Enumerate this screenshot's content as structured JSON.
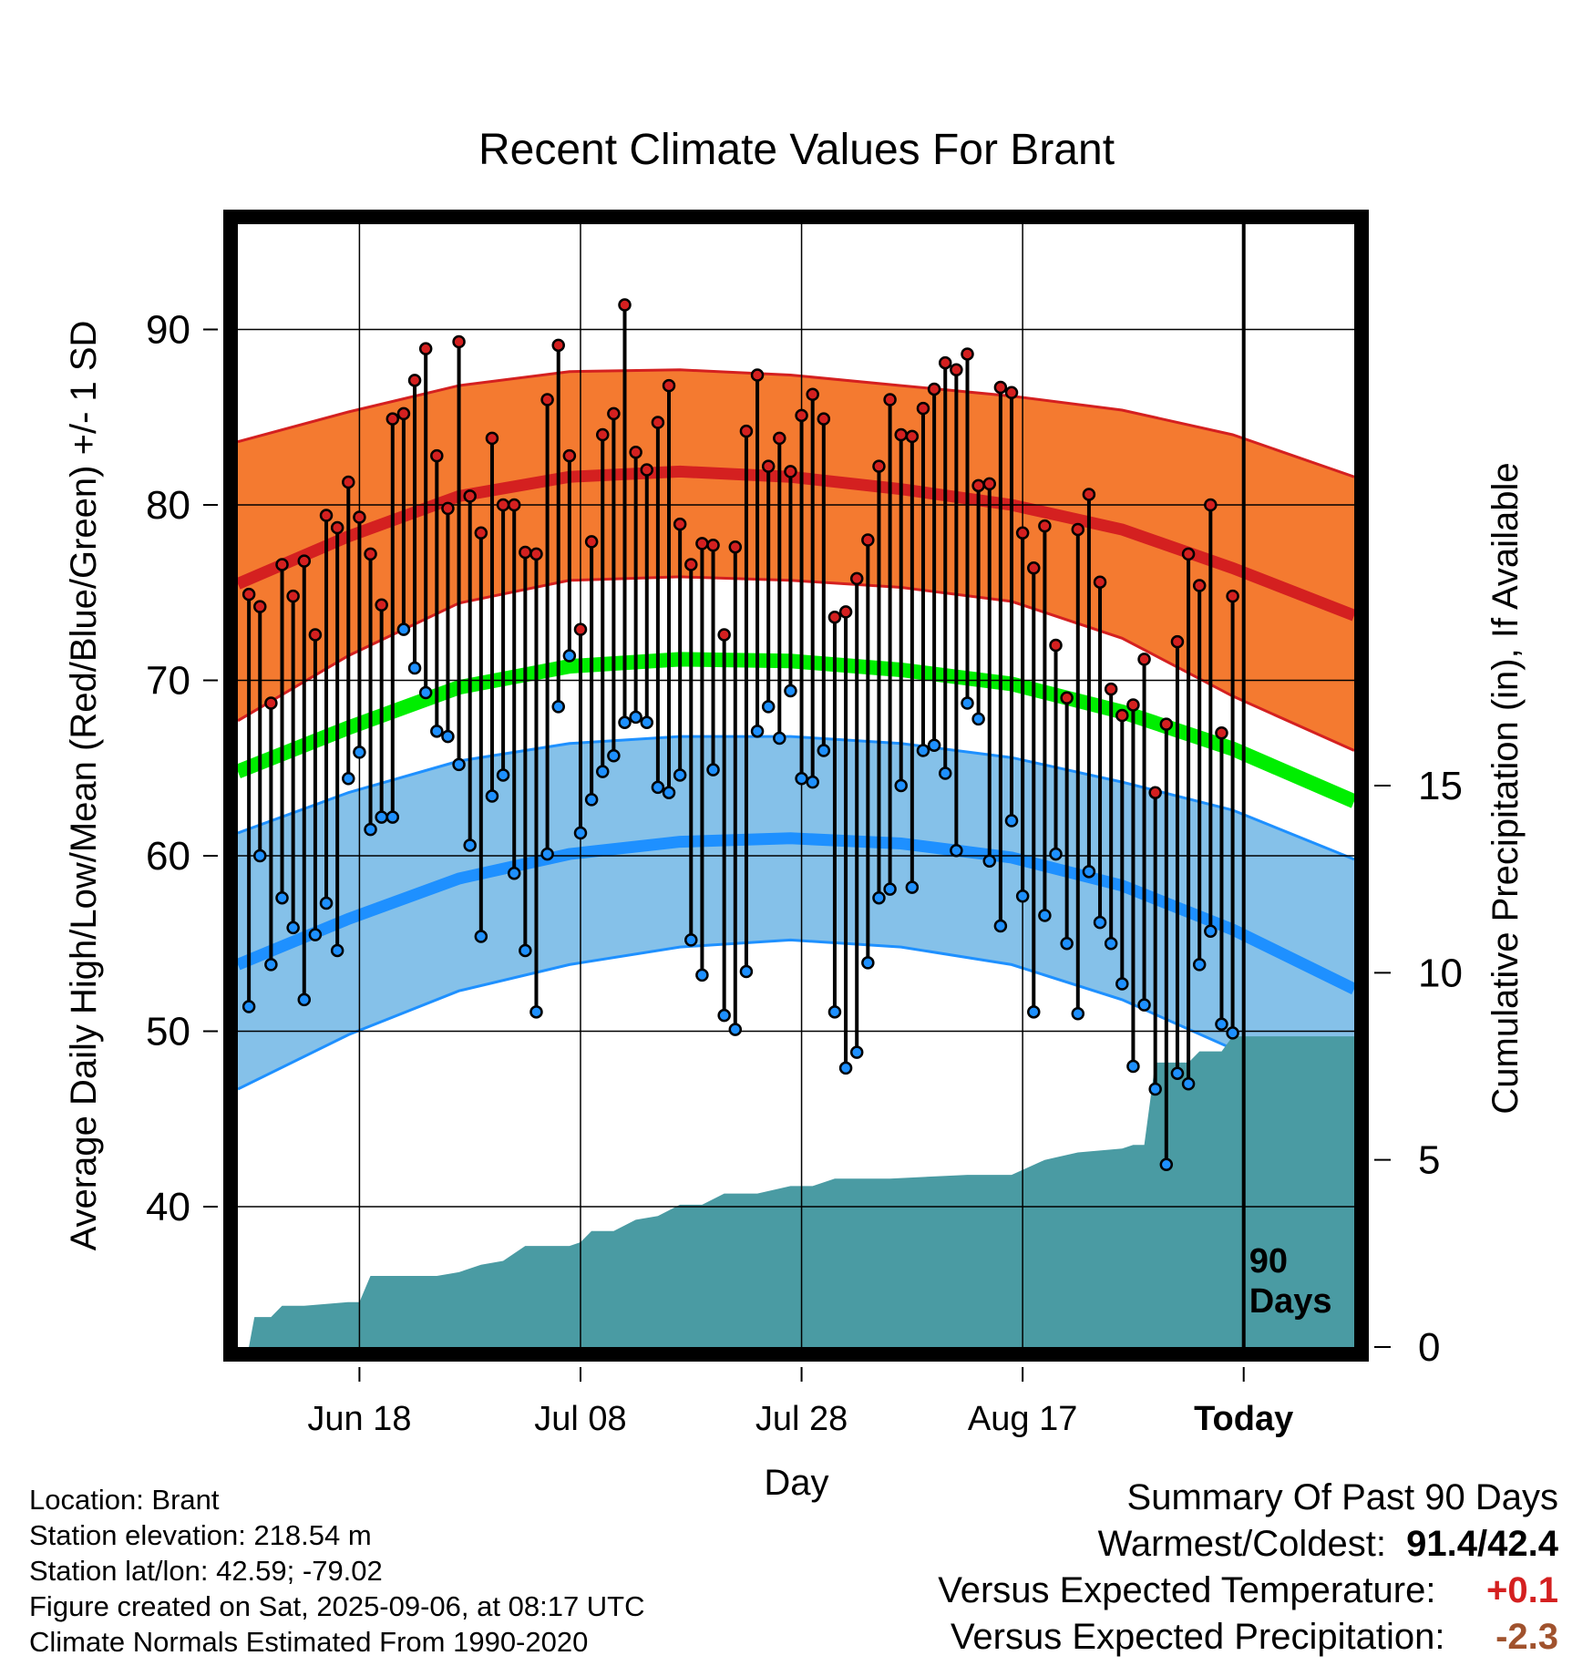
{
  "chart_data": {
    "type": "line",
    "title": "Recent Climate Values For Brant",
    "xlabel": "Day",
    "ylabel": "Average Daily High/Low/Mean (Red/Blue/Green) +/- 1 SD",
    "y2label": "Cumulative Precipitation (in), If Available",
    "x_tick_labels": [
      "Jun 18",
      "Jul 08",
      "Jul 28",
      "Aug 17",
      "Today"
    ],
    "x_tick_days": [
      11,
      31,
      51,
      71,
      91
    ],
    "xlim": [
      0,
      101
    ],
    "ylim": [
      32,
      96
    ],
    "y_ticks": [
      40,
      50,
      60,
      70,
      80,
      90
    ],
    "y2lim": [
      0,
      30
    ],
    "y2_ticks": [
      0,
      5,
      10,
      15
    ],
    "grid": true,
    "today_label": "90 Days",
    "days": [
      1,
      2,
      3,
      4,
      5,
      6,
      7,
      8,
      9,
      10,
      11,
      12,
      13,
      14,
      15,
      16,
      17,
      18,
      19,
      20,
      21,
      22,
      23,
      24,
      25,
      26,
      27,
      28,
      29,
      30,
      31,
      32,
      33,
      34,
      35,
      36,
      37,
      38,
      39,
      40,
      41,
      42,
      43,
      44,
      45,
      46,
      47,
      48,
      49,
      50,
      51,
      52,
      53,
      54,
      55,
      56,
      57,
      58,
      59,
      60,
      61,
      62,
      63,
      64,
      65,
      66,
      67,
      68,
      69,
      70,
      71,
      72,
      73,
      74,
      75,
      76,
      77,
      78,
      79,
      80,
      81,
      82,
      83,
      84,
      85,
      86,
      87,
      88,
      89,
      90
    ],
    "series": [
      {
        "name": "High",
        "color": "#d42020",
        "values": [
          74.9,
          74.2,
          68.7,
          76.6,
          74.8,
          76.8,
          72.6,
          79.4,
          78.7,
          81.3,
          79.3,
          77.2,
          74.3,
          84.9,
          85.2,
          87.1,
          88.9,
          82.8,
          79.8,
          89.3,
          80.5,
          78.4,
          83.8,
          80.0,
          80.0,
          77.3,
          77.2,
          86.0,
          89.1,
          82.8,
          72.9,
          77.9,
          84.0,
          85.2,
          91.4,
          83.0,
          82.0,
          84.7,
          86.8,
          78.9,
          76.6,
          77.8,
          77.7,
          72.6,
          77.6,
          84.2,
          87.4,
          82.2,
          83.8,
          81.9,
          85.1,
          86.3,
          84.9,
          73.6,
          73.9,
          75.8,
          78.0,
          82.2,
          86.0,
          84.0,
          83.9,
          85.5,
          86.6,
          88.1,
          87.7,
          88.6,
          81.1,
          81.2,
          86.7,
          86.4,
          78.4,
          76.4,
          78.8,
          72.0,
          69.0,
          78.6,
          80.6,
          75.6,
          69.5,
          68.0,
          68.6,
          71.2,
          63.6,
          67.5,
          72.2,
          77.2,
          75.4,
          80.0,
          67.0,
          74.8
        ]
      },
      {
        "name": "Low",
        "color": "#1e90ff",
        "values": [
          51.4,
          60.0,
          53.8,
          57.6,
          55.9,
          51.8,
          55.5,
          57.3,
          54.6,
          64.4,
          65.9,
          61.5,
          62.2,
          62.2,
          72.9,
          70.7,
          69.3,
          67.1,
          66.8,
          65.2,
          60.6,
          55.4,
          63.4,
          64.6,
          59.0,
          54.6,
          51.1,
          60.1,
          68.5,
          71.4,
          61.3,
          63.2,
          64.8,
          65.7,
          67.6,
          67.9,
          67.6,
          63.9,
          63.6,
          64.6,
          55.2,
          53.2,
          64.9,
          50.9,
          50.1,
          53.4,
          67.1,
          68.5,
          66.7,
          69.4,
          64.4,
          64.2,
          66.0,
          51.1,
          47.9,
          48.8,
          53.9,
          57.6,
          58.1,
          64.0,
          58.2,
          66.0,
          66.3,
          64.7,
          60.3,
          68.7,
          67.8,
          59.7,
          56.0,
          62.0,
          57.7,
          51.1,
          56.6,
          60.1,
          55.0,
          51.0,
          59.1,
          56.2,
          55.0,
          52.7,
          48.0,
          51.5,
          46.7,
          42.4,
          47.6,
          47.0,
          53.8,
          55.7,
          50.4,
          49.9
        ]
      }
    ],
    "normal_high": {
      "color": "#d42020",
      "band_color": "#f47a30",
      "days": [
        0,
        10,
        20,
        30,
        40,
        50,
        60,
        70,
        80,
        90,
        101
      ],
      "mean": [
        75.5,
        78.2,
        80.5,
        81.6,
        81.9,
        81.6,
        80.9,
        80.0,
        78.6,
        76.4,
        73.7
      ],
      "upper": [
        83.6,
        85.3,
        86.8,
        87.6,
        87.7,
        87.4,
        86.8,
        86.2,
        85.4,
        84.0,
        81.6
      ],
      "lower": [
        67.7,
        71.4,
        74.4,
        75.7,
        75.9,
        75.7,
        75.3,
        74.5,
        72.4,
        69.1,
        66.0
      ]
    },
    "normal_low": {
      "color": "#1e90ff",
      "band_color": "#85c1e9",
      "days": [
        0,
        10,
        20,
        30,
        40,
        50,
        60,
        70,
        80,
        90,
        101
      ],
      "mean": [
        53.8,
        56.4,
        58.7,
        60.1,
        60.8,
        61.0,
        60.7,
        59.9,
        58.3,
        55.8,
        52.4
      ],
      "upper": [
        61.3,
        63.6,
        65.4,
        66.4,
        66.8,
        66.8,
        66.4,
        65.6,
        64.2,
        62.6,
        59.8
      ],
      "lower": [
        46.7,
        49.8,
        52.3,
        53.8,
        54.8,
        55.2,
        54.8,
        53.8,
        51.8,
        49.0,
        45.3
      ]
    },
    "normal_mean": {
      "color": "#00ee00",
      "days": [
        0,
        10,
        20,
        30,
        40,
        50,
        60,
        70,
        80,
        90,
        101
      ],
      "values": [
        64.8,
        67.3,
        69.6,
        70.8,
        71.2,
        71.1,
        70.6,
        69.8,
        68.2,
        66.1,
        63.1
      ]
    },
    "precipitation": {
      "color": "#4a9ba3",
      "days": [
        0,
        1,
        1.5,
        3,
        4,
        6,
        10,
        11,
        12,
        15,
        18,
        20,
        22,
        24,
        26,
        27,
        30,
        31,
        32,
        34,
        36,
        38,
        40,
        42,
        44,
        47,
        50,
        52,
        54,
        56,
        59,
        66,
        70,
        73,
        76,
        80,
        81,
        82,
        83,
        84,
        86,
        87,
        89,
        90,
        101
      ],
      "values": [
        0,
        0,
        0.8,
        0.8,
        1.1,
        1.1,
        1.2,
        1.2,
        1.9,
        1.9,
        1.9,
        2.0,
        2.2,
        2.3,
        2.7,
        2.7,
        2.7,
        2.8,
        3.1,
        3.1,
        3.4,
        3.5,
        3.8,
        3.8,
        4.1,
        4.1,
        4.3,
        4.3,
        4.5,
        4.5,
        4.5,
        4.6,
        4.6,
        5.0,
        5.2,
        5.3,
        5.4,
        5.4,
        7.6,
        7.6,
        7.6,
        7.9,
        7.9,
        8.3,
        8.3
      ]
    }
  },
  "info": {
    "location": "Location: Brant",
    "elevation": "Station elevation: 218.54 m",
    "latlon": "Station lat/lon: 42.59; -79.02",
    "created": "Figure created on Sat, 2025-09-06, at 08:17 UTC",
    "normals": "Climate Normals Estimated From 1990-2020"
  },
  "summary": {
    "title": "Summary Of Past 90 Days",
    "warmest_label": "Warmest/Coldest:",
    "warmest_value": "91.4/42.4",
    "temp_label": "Versus Expected Temperature:",
    "temp_value": "+0.1",
    "precip_label": "Versus Expected Precipitation:",
    "precip_value": "-2.3",
    "temp_color": "#d42020",
    "precip_color": "#a0522d"
  }
}
